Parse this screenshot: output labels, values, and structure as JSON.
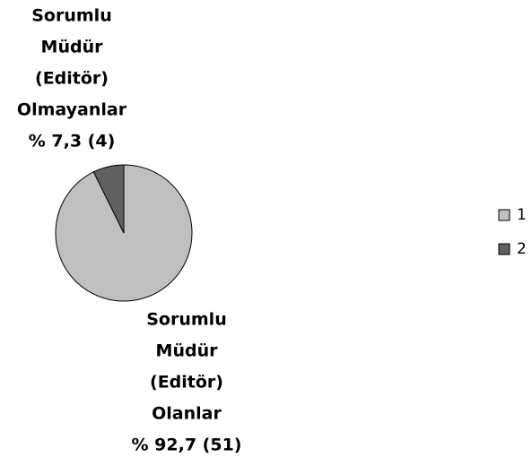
{
  "chart_data": {
    "type": "pie",
    "categories": [
      "1",
      "2"
    ],
    "values": [
      92.7,
      7.3
    ],
    "value_labels": [
      [
        "Sorumlu",
        "Müdür",
        "(Editör)",
        "Olanlar",
        "% 92,7 (51)"
      ],
      [
        "Sorumlu",
        "Müdür",
        "(Editör)",
        "Olmayanlar",
        "% 7,3 (4)"
      ]
    ],
    "colors": [
      "#c0c0c0",
      "#606060"
    ],
    "legend": "right"
  }
}
